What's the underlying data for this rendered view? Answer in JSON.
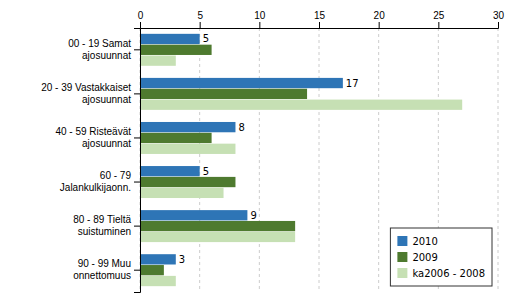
{
  "chart_data": {
    "type": "bar",
    "orientation": "horizontal",
    "categories": [
      "00 - 19 Samat\najosuunnat",
      "20 - 39 Vastakkaiset\najosuunnat",
      "40 - 59 Risteävät\najosuunnat",
      "60 - 79\nJalankulkijaonn.",
      "80 - 89 Tieltä\nsuistuminen",
      "90 - 99 Muu\nonnettomuus"
    ],
    "series": [
      {
        "name": "2010",
        "color": "#2E75B6",
        "values": [
          5,
          17,
          8,
          5,
          9,
          3
        ],
        "data_labels": true
      },
      {
        "name": "2009",
        "color": "#4E7A2F",
        "values": [
          6,
          14,
          6,
          8,
          13,
          2
        ]
      },
      {
        "name": "ka2006 - 2008",
        "color": "#C6E0B4",
        "values": [
          3,
          27,
          8,
          7,
          13,
          3
        ]
      }
    ],
    "xlim": [
      0,
      30
    ],
    "xticks": [
      0,
      5,
      10,
      15,
      20,
      25,
      30
    ],
    "grid": true,
    "legend": "lower right"
  }
}
